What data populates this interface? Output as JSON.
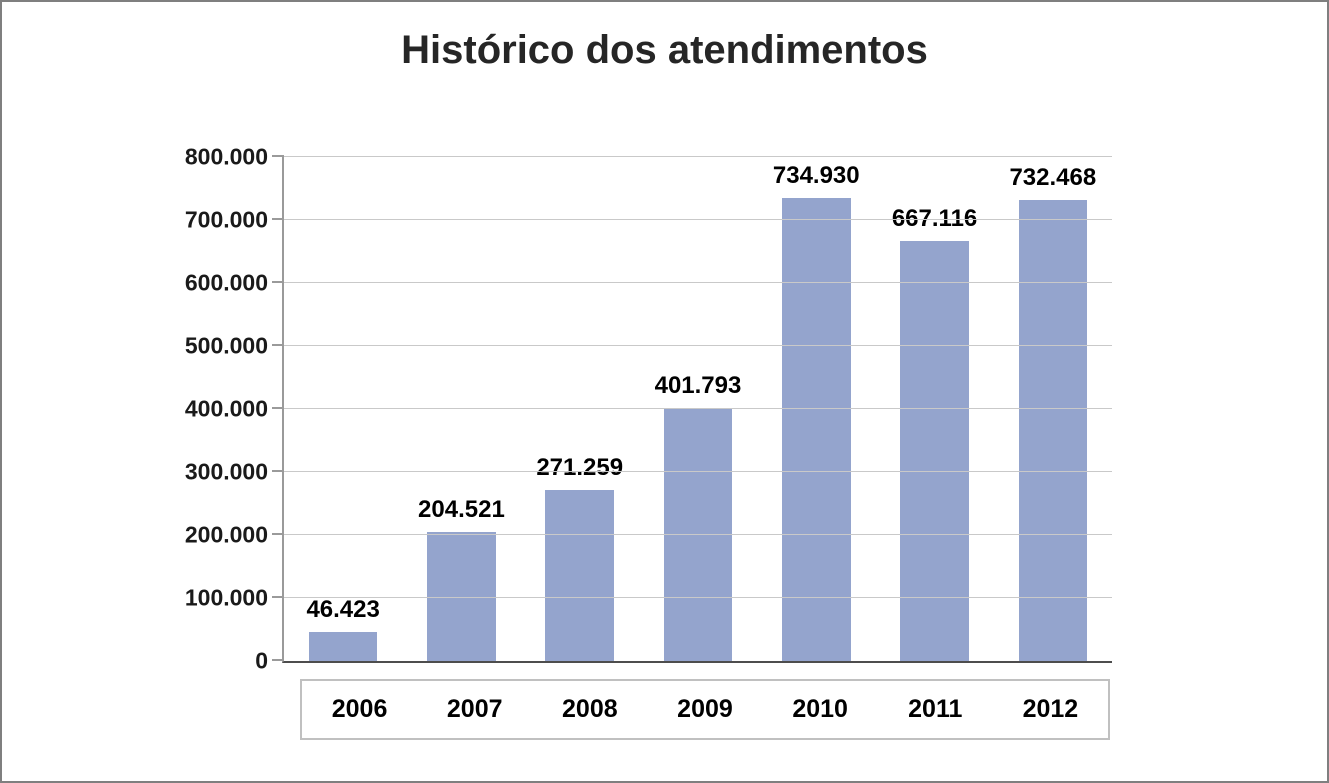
{
  "chart_data": {
    "type": "bar",
    "title": "Histórico dos atendimentos",
    "xlabel": "",
    "ylabel": "",
    "categories": [
      "2006",
      "2007",
      "2008",
      "2009",
      "2010",
      "2011",
      "2012"
    ],
    "values": [
      46423,
      204521,
      271259,
      401793,
      734930,
      667116,
      732468
    ],
    "value_labels": [
      "46.423",
      "204.521",
      "271.259",
      "401.793",
      "734.930",
      "667.116",
      "732.468"
    ],
    "ylim": [
      0,
      800000
    ],
    "yticks": [
      {
        "value": 0,
        "label": "0"
      },
      {
        "value": 100000,
        "label": "100.000"
      },
      {
        "value": 200000,
        "label": "200.000"
      },
      {
        "value": 300000,
        "label": "300.000"
      },
      {
        "value": 400000,
        "label": "400.000"
      },
      {
        "value": 500000,
        "label": "500.000"
      },
      {
        "value": 600000,
        "label": "600.000"
      },
      {
        "value": 700000,
        "label": "700.000"
      },
      {
        "value": 800000,
        "label": "800.000"
      }
    ],
    "grid": true,
    "legend": "none",
    "colors": {
      "bar": "#94A4CD",
      "gridline": "#C9C9C9",
      "axis_vertical": "#9A9A9A",
      "axis_horizontal": "#4D4D4D",
      "title": "#262626",
      "frame_border": "#7F7F7F",
      "category_box_border": "#C0C0C0",
      "background": "#FFFFFF"
    }
  }
}
